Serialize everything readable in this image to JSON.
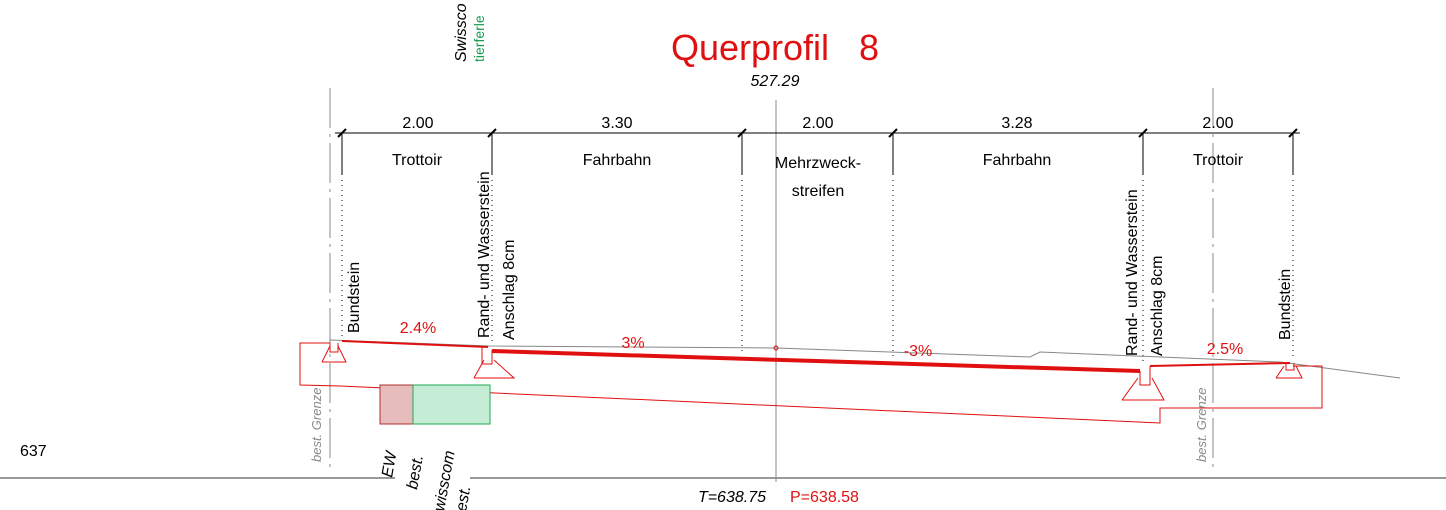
{
  "header": {
    "title": "Querprofil   8",
    "station": "527.29"
  },
  "top_notes": [
    "Swissco",
    "tierferle"
  ],
  "dimensions": [
    {
      "width": "2.00",
      "label": "Trottoir"
    },
    {
      "width": "3.30",
      "label": "Fahrbahn"
    },
    {
      "width": "2.00",
      "label": "Mehrzweck-",
      "label2": "streifen"
    },
    {
      "width": "3.28",
      "label": "Fahrbahn"
    },
    {
      "width": "2.00",
      "label": "Trottoir"
    }
  ],
  "elements": {
    "left": [
      "Bundstein",
      "Rand- und Wasserstein",
      "Anschlag 8cm"
    ],
    "right": [
      "Rand- und Wasserstein",
      "Anschlag 8cm",
      "Bundstein"
    ]
  },
  "slopes": [
    "2.4%",
    "3%",
    "-3%",
    "2.5%"
  ],
  "boundary": [
    "best. Grenze",
    "best. Grenze"
  ],
  "reference_height": "637",
  "pipes": [
    "EW",
    "best.",
    "wisscom",
    "est."
  ],
  "heights": {
    "terrain": "T=638.75",
    "project": "P=638.58"
  }
}
